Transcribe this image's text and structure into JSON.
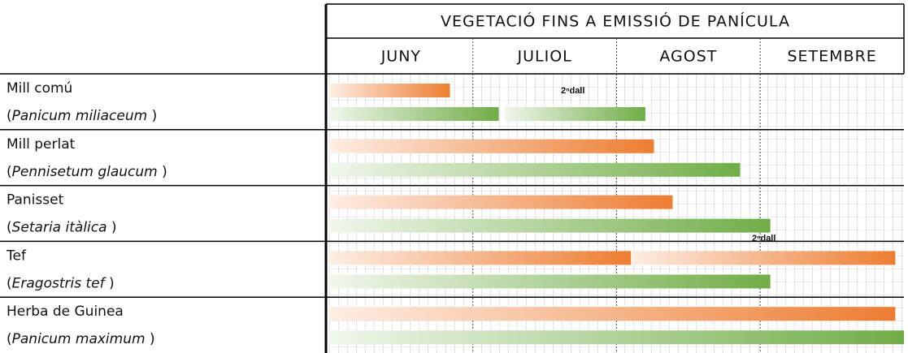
{
  "chart_data": {
    "type": "gantt",
    "title": "VEGETACIÓ FINS A EMISSIÓ DE PANÍCULA",
    "categories": [
      "JUNY",
      "JULIOL",
      "AGOST",
      "SETEMBRE"
    ],
    "xlim": [
      0,
      4
    ],
    "colors": {
      "orange": "#ed7d31",
      "green": "#70ad47"
    },
    "rows": [
      {
        "name": "Mill comú",
        "latin": [
          "(",
          "Panicum miliaceum",
          " )"
        ],
        "bars": [
          {
            "color": "orange",
            "start": 0,
            "end": 0.84
          },
          {
            "color": "green",
            "start": 0,
            "end": 1.18
          },
          {
            "color": "green",
            "start": 1.22,
            "end": 2.2
          }
        ]
      },
      {
        "name": "Mill perlat",
        "latin": [
          "(",
          "Pennisetum glaucum",
          " )"
        ],
        "bars": [
          {
            "color": "orange",
            "start": 0,
            "end": 2.26
          },
          {
            "color": "green",
            "start": 0,
            "end": 2.86
          }
        ]
      },
      {
        "name": "Panisset",
        "latin": [
          "(",
          "Setaria itàlica",
          " )"
        ],
        "bars": [
          {
            "color": "orange",
            "start": 0,
            "end": 2.39
          },
          {
            "color": "green",
            "start": 0,
            "end": 3.07
          }
        ]
      },
      {
        "name": "Tef",
        "latin": [
          "(",
          "Eragostris tef",
          " )"
        ],
        "bars": [
          {
            "color": "orange",
            "start": 0,
            "end": 2.1
          },
          {
            "color": "orange",
            "start": 2.1,
            "end": 3.94
          },
          {
            "color": "green",
            "start": 0,
            "end": 3.07
          }
        ]
      },
      {
        "name": "Herba de Guinea",
        "latin": [
          "(",
          "Panicum maximum",
          " )"
        ],
        "bars": [
          {
            "color": "orange",
            "start": 0,
            "end": 3.94
          },
          {
            "color": "green",
            "start": 0,
            "end": 4
          }
        ]
      }
    ],
    "annotations": [
      "2ⁿdall",
      "2ⁿdall"
    ]
  }
}
